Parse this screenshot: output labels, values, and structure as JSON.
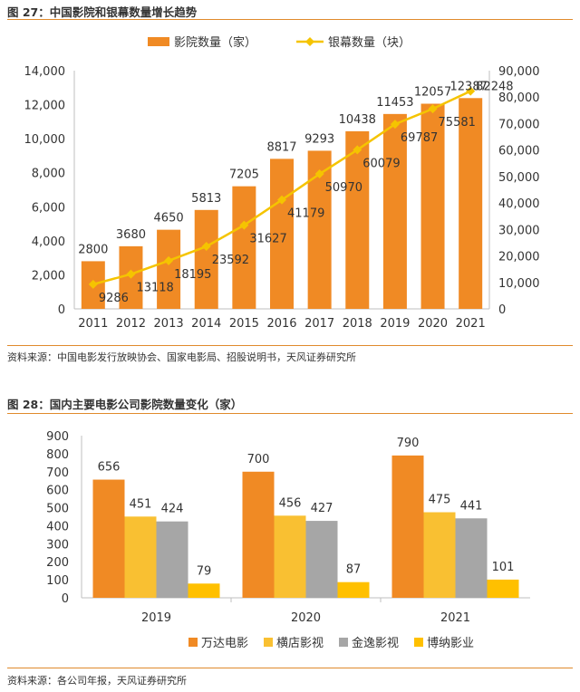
{
  "figure1": {
    "title": "图 27：中国影院和银幕数量增长趋势",
    "source": "资料来源：中国电影发行放映协会、国家电影局、招股说明书，天风证券研究所"
  },
  "figure2": {
    "title": "图 28：国内主要电影公司影院数量变化（家）",
    "source": "资料来源：各公司年报，天风证券研究所"
  },
  "colors": {
    "accent_rule": "#e08a2c"
  },
  "chart_data": [
    {
      "type": "bar+line",
      "categories": [
        "2011",
        "2012",
        "2013",
        "2014",
        "2015",
        "2016",
        "2017",
        "2018",
        "2019",
        "2020",
        "2021"
      ],
      "series": [
        {
          "name": "影院数量（家）",
          "type": "bar",
          "axis": "left",
          "color": "#f08a24",
          "values": [
            2800,
            3680,
            4650,
            5813,
            7205,
            8817,
            9293,
            10438,
            11453,
            12057,
            12387
          ]
        },
        {
          "name": "银幕数量（块）",
          "type": "line",
          "axis": "right",
          "color": "#f5c400",
          "values": [
            9286,
            13118,
            18195,
            23592,
            31627,
            41179,
            50970,
            60079,
            69787,
            75581,
            82248
          ]
        }
      ],
      "left_axis": {
        "min": 0,
        "max": 14000,
        "ticks": [
          "0",
          "2,000",
          "4,000",
          "6,000",
          "8,000",
          "10,000",
          "12,000",
          "14,000"
        ]
      },
      "right_axis": {
        "min": 0,
        "max": 90000,
        "ticks": [
          "0",
          "10,000",
          "20,000",
          "30,000",
          "40,000",
          "50,000",
          "60,000",
          "70,000",
          "80,000",
          "90,000"
        ]
      },
      "legend": "top-center",
      "grid": false
    },
    {
      "type": "bar",
      "categories": [
        "2019",
        "2020",
        "2021"
      ],
      "series": [
        {
          "name": "万达电影",
          "color": "#f08a24",
          "values": [
            656,
            700,
            790
          ]
        },
        {
          "name": "横店影视",
          "color": "#f9c032",
          "values": [
            451,
            456,
            475
          ]
        },
        {
          "name": "金逸影视",
          "color": "#a6a6a6",
          "values": [
            424,
            427,
            441
          ]
        },
        {
          "name": "博纳影业",
          "color": "#ffc000",
          "values": [
            79,
            87,
            101
          ]
        }
      ],
      "y_axis": {
        "min": 0,
        "max": 900,
        "ticks": [
          "0",
          "100",
          "200",
          "300",
          "400",
          "500",
          "600",
          "700",
          "800",
          "900"
        ]
      },
      "legend": "bottom-center",
      "grid": false
    }
  ]
}
